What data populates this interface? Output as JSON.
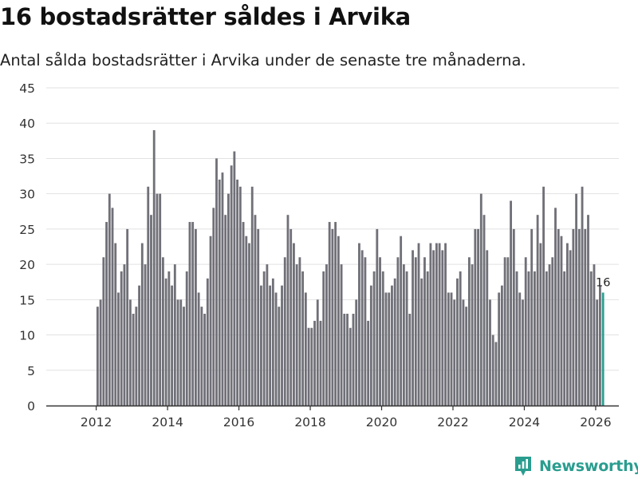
{
  "title": "16 bostadsrätter såldes i Arvika",
  "subtitle": "Antal sålda bostadsrätter i Arvika under de senaste tre månaderna.",
  "brand": {
    "name": "Newsworthy",
    "logo": "newsworthy-logo-icon"
  },
  "colors": {
    "bar": "#707078",
    "highlight": "#2a9d8f",
    "grid": "#e2e2e2",
    "axis": "#333333",
    "tick_text": "#333333",
    "brand": "#2a9d8f"
  },
  "chart_data": {
    "type": "bar",
    "title": "16 bostadsrätter såldes i Arvika",
    "xlabel": "",
    "ylabel": "",
    "ylim": [
      0,
      45
    ],
    "yticks": [
      0,
      5,
      10,
      15,
      20,
      25,
      30,
      35,
      40,
      45
    ],
    "xticks": [
      "2012",
      "2014",
      "2016",
      "2018",
      "2020",
      "2022",
      "2024",
      "2026"
    ],
    "grid": true,
    "start": "2012-01",
    "frequency": "monthly",
    "highlight_last": true,
    "last_label": "16",
    "values": [
      14,
      15,
      21,
      26,
      30,
      28,
      23,
      16,
      19,
      20,
      25,
      15,
      13,
      14,
      17,
      23,
      20,
      31,
      27,
      39,
      30,
      30,
      21,
      18,
      19,
      17,
      20,
      15,
      15,
      14,
      19,
      26,
      26,
      25,
      16,
      14,
      13,
      18,
      24,
      28,
      35,
      32,
      33,
      27,
      30,
      34,
      36,
      32,
      31,
      26,
      24,
      23,
      31,
      27,
      25,
      17,
      19,
      20,
      17,
      18,
      16,
      14,
      17,
      21,
      27,
      25,
      23,
      20,
      21,
      19,
      16,
      11,
      11,
      12,
      15,
      12,
      19,
      20,
      26,
      25,
      26,
      24,
      20,
      13,
      13,
      11,
      13,
      15,
      23,
      22,
      21,
      12,
      17,
      19,
      25,
      21,
      19,
      16,
      16,
      17,
      18,
      21,
      24,
      20,
      19,
      13,
      22,
      21,
      23,
      18,
      21,
      19,
      23,
      22,
      23,
      23,
      22,
      23,
      16,
      16,
      15,
      18,
      19,
      15,
      14,
      21,
      20,
      25,
      25,
      30,
      27,
      22,
      15,
      10,
      9,
      16,
      17,
      21,
      21,
      29,
      25,
      19,
      16,
      15,
      21,
      19,
      25,
      19,
      27,
      23,
      31,
      19,
      20,
      21,
      28,
      25,
      24,
      19,
      23,
      22,
      25,
      30,
      25,
      31,
      25,
      27,
      19,
      20,
      15,
      17,
      16
    ]
  }
}
